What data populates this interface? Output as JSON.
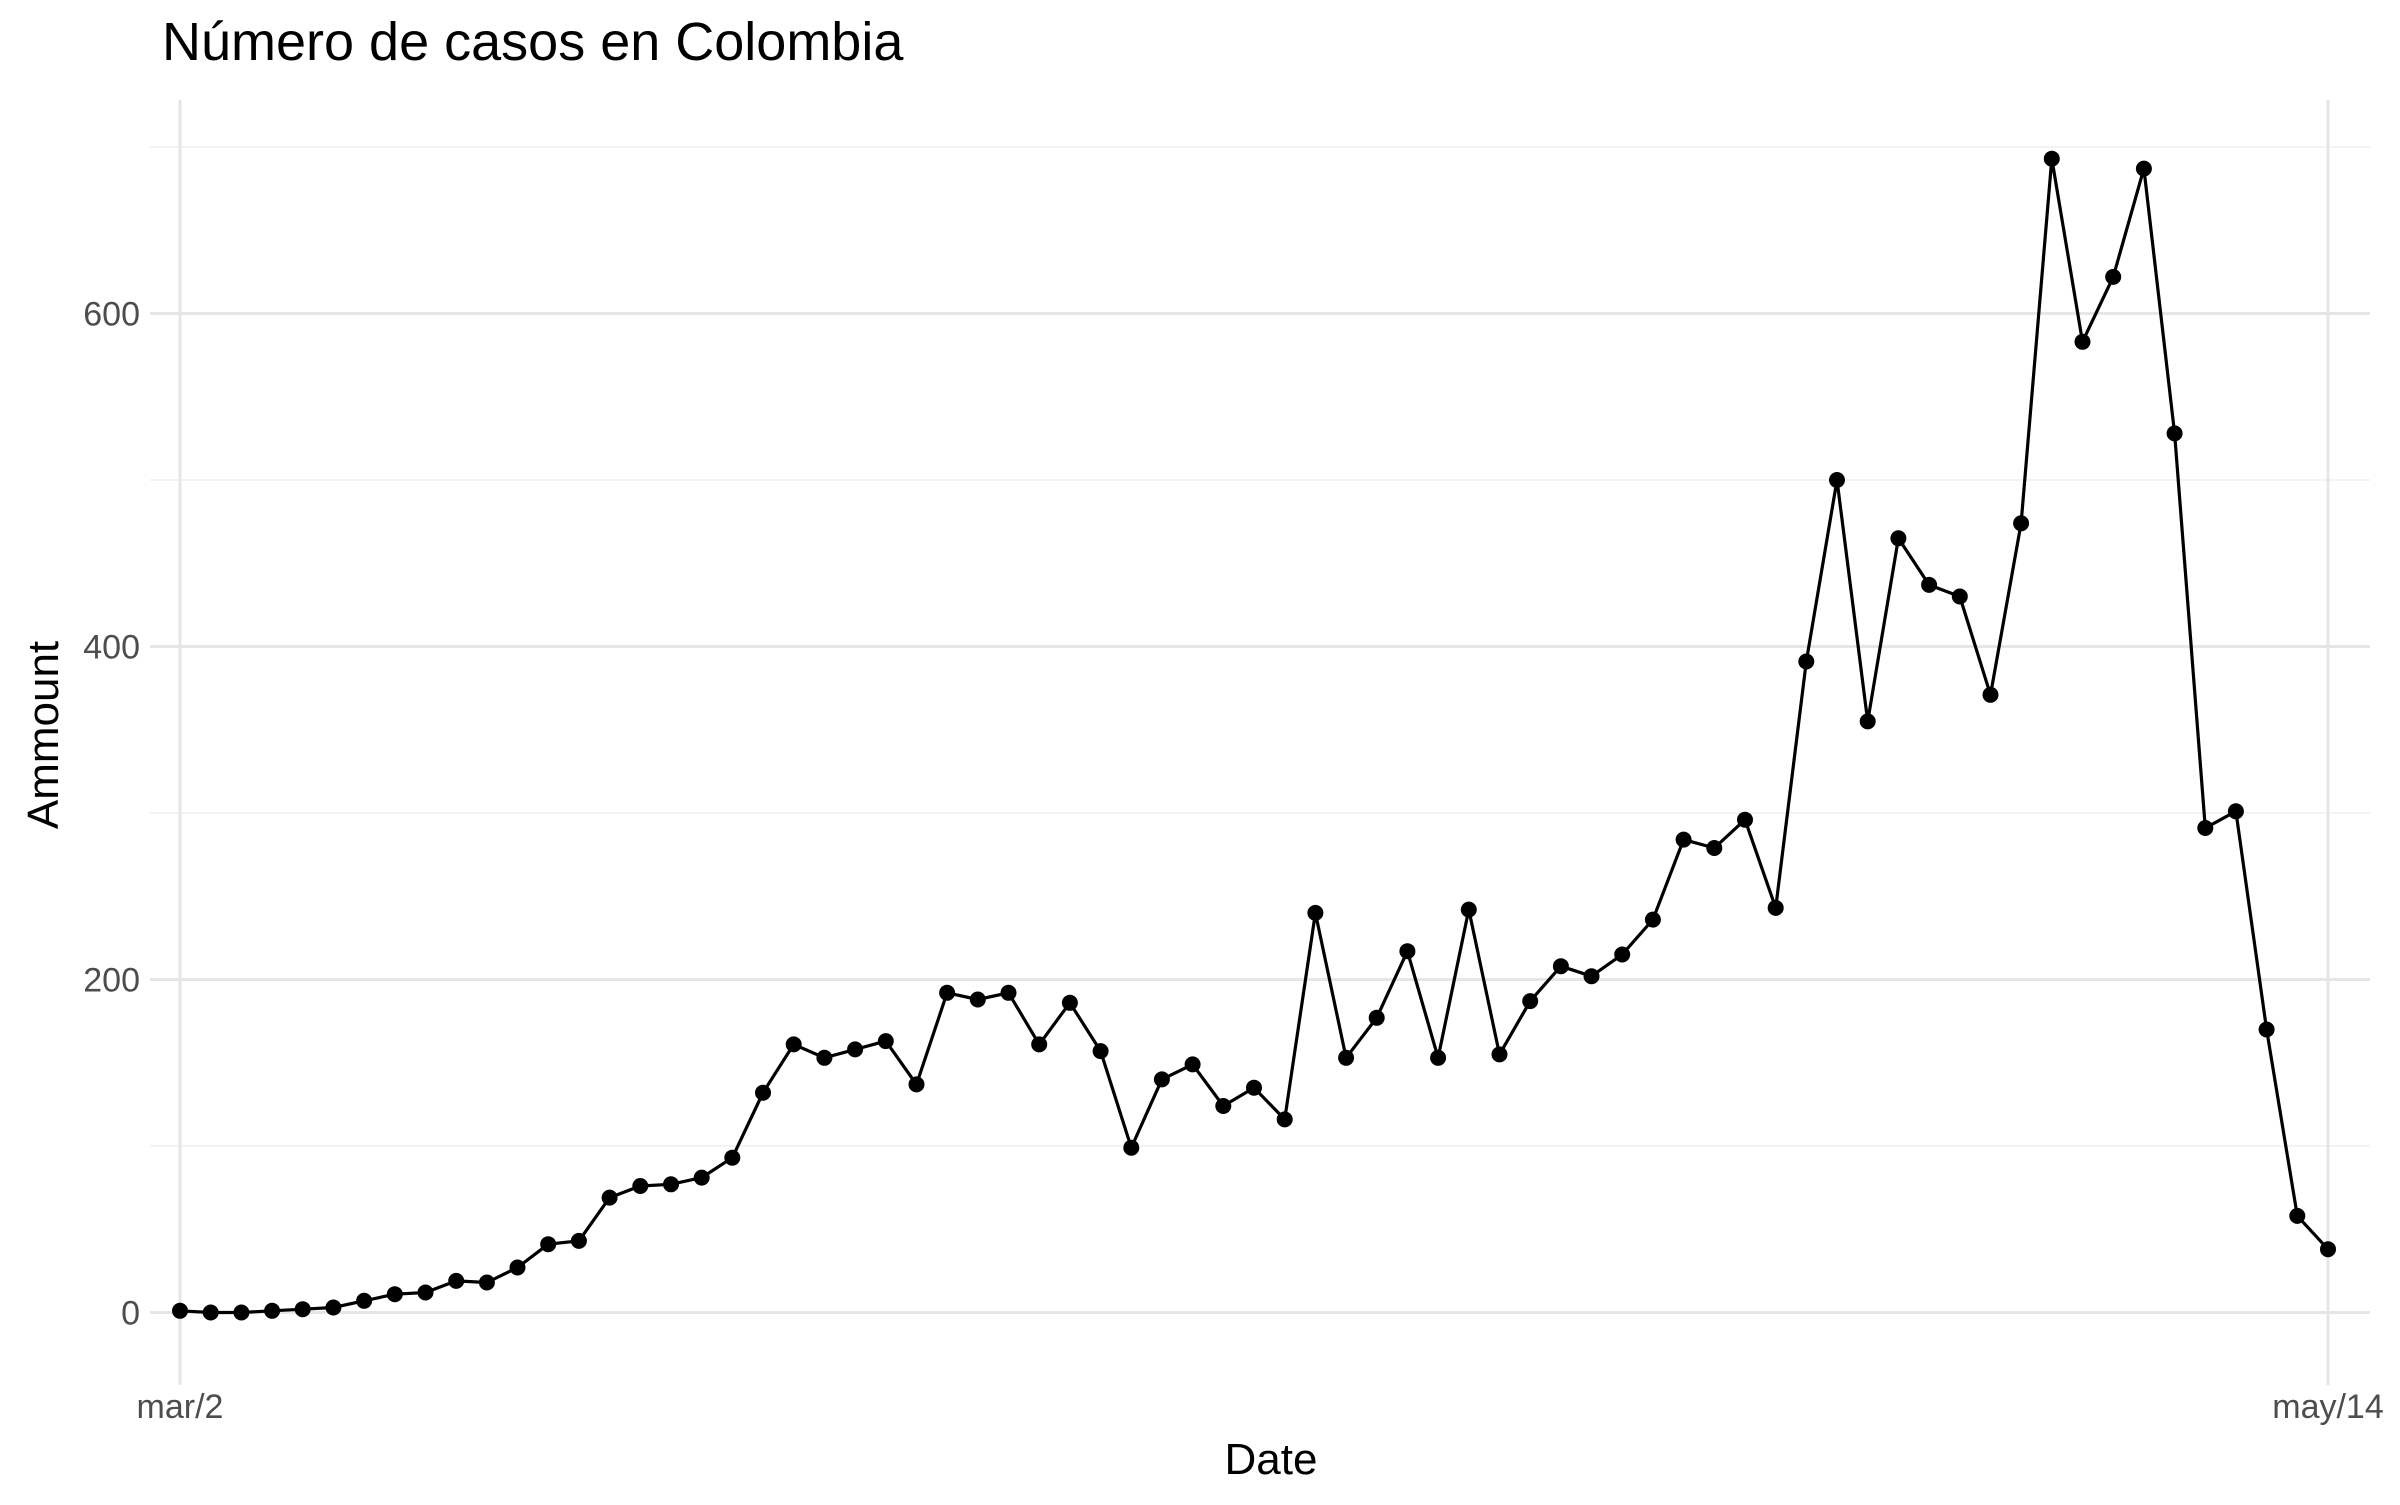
{
  "chart_data": {
    "type": "line",
    "title": "Número de casos en Colombia",
    "xlabel": "Date",
    "ylabel": "Ammount",
    "x_start": "mar/2",
    "x_end": "may/14",
    "x_ticks": [
      "mar/2",
      "may/14"
    ],
    "y_ticks": [
      0,
      200,
      400,
      600
    ],
    "ylim": [
      -30,
      705
    ],
    "grid": true,
    "legend": "none",
    "series": [
      {
        "color": "#000000",
        "markers": true,
        "values": [
          1,
          0,
          0,
          1,
          2,
          3,
          7,
          11,
          12,
          19,
          18,
          27,
          41,
          43,
          69,
          76,
          77,
          81,
          93,
          132,
          161,
          153,
          158,
          163,
          137,
          192,
          188,
          192,
          161,
          186,
          157,
          99,
          140,
          149,
          124,
          135,
          116,
          240,
          153,
          177,
          217,
          153,
          242,
          155,
          187,
          208,
          202,
          215,
          236,
          284,
          279,
          296,
          243,
          391,
          500,
          355,
          465,
          437,
          430,
          371,
          474,
          693,
          583,
          622,
          687,
          528,
          291,
          301,
          170,
          58,
          38
        ]
      }
    ]
  }
}
